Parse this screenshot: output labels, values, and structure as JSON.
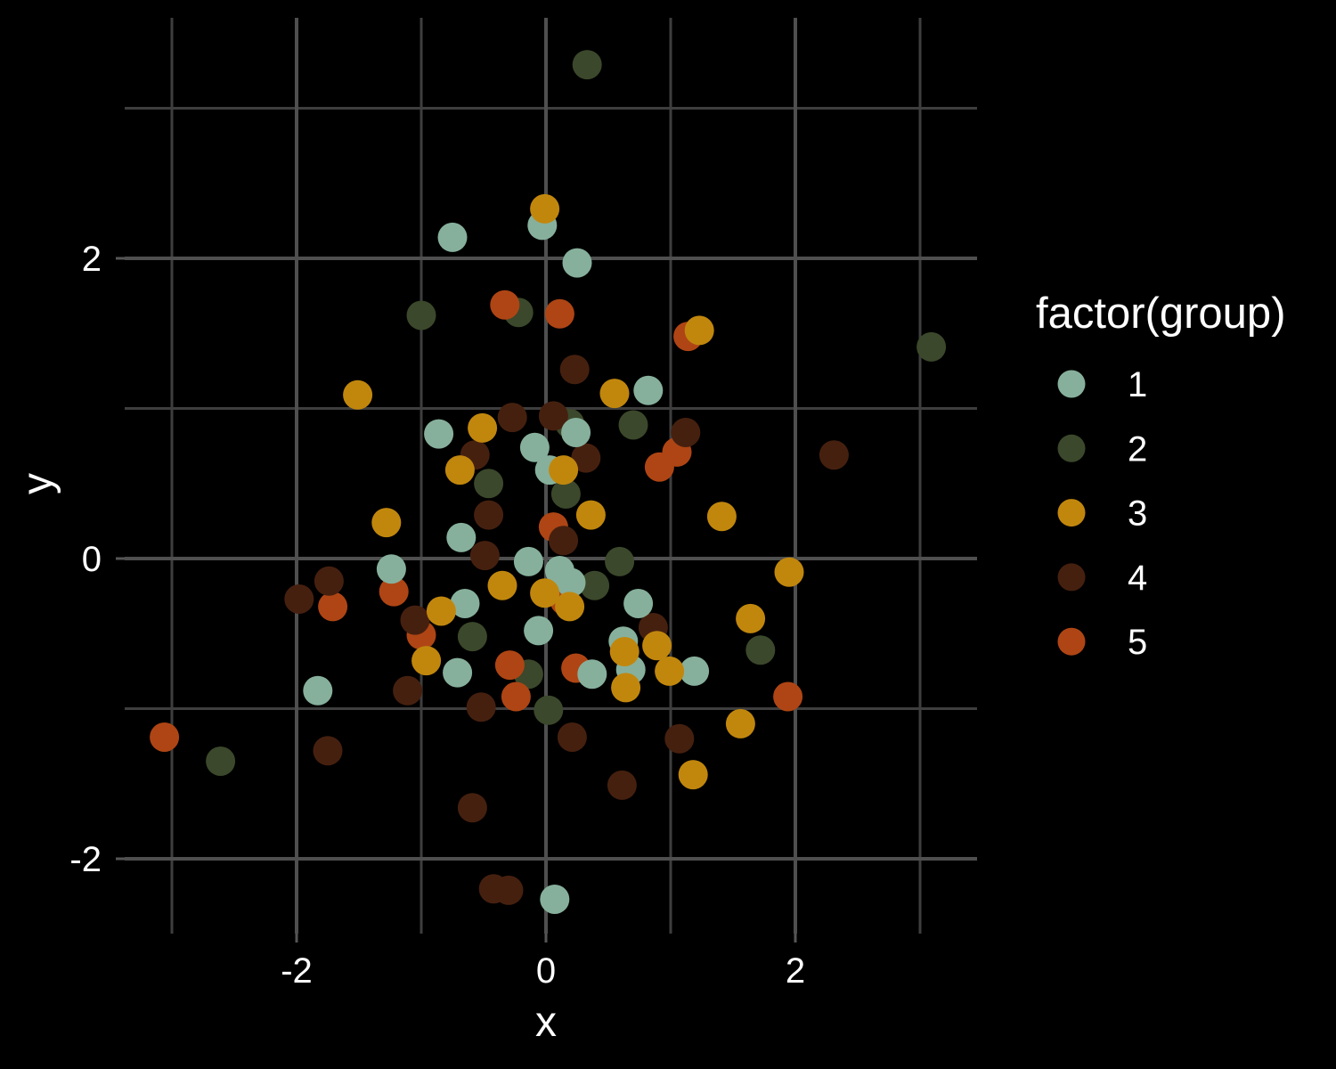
{
  "chart_data": {
    "type": "scatter",
    "title": "",
    "xlabel": "x",
    "ylabel": "y",
    "background_color": "#000000",
    "grid": true,
    "x_range": [
      -3.38,
      3.46
    ],
    "y_range": [
      -2.5,
      3.6
    ],
    "x_major_ticks": [
      {
        "value": -2,
        "label": "-2"
      },
      {
        "value": 0,
        "label": "0"
      },
      {
        "value": 2,
        "label": "2"
      }
    ],
    "y_major_ticks": [
      {
        "value": -2,
        "label": "-2"
      },
      {
        "value": 0,
        "label": "0"
      },
      {
        "value": 2,
        "label": "2"
      }
    ],
    "x_minor_gridlines": [
      -3,
      -1,
      1,
      3
    ],
    "y_minor_gridlines": [
      -1,
      1,
      3
    ],
    "legend_title": "factor(group)",
    "legend_position": "right",
    "point_draw_order": [
      "2",
      "5",
      "4",
      "1",
      "3"
    ],
    "series": [
      {
        "name": "1",
        "color": "#86B09C",
        "points": [
          [
            -0.03,
            2.22
          ],
          [
            -0.75,
            2.14
          ],
          [
            0.25,
            1.97
          ],
          [
            0.82,
            1.12
          ],
          [
            -0.86,
            0.83
          ],
          [
            0.24,
            0.84
          ],
          [
            -0.09,
            0.74
          ],
          [
            0.03,
            0.59
          ],
          [
            -0.68,
            0.14
          ],
          [
            -0.14,
            -0.02
          ],
          [
            0.11,
            -0.08
          ],
          [
            0.2,
            -0.16
          ],
          [
            -1.24,
            -0.07
          ],
          [
            -0.65,
            -0.3
          ],
          [
            0.74,
            -0.3
          ],
          [
            -0.06,
            -0.48
          ],
          [
            0.62,
            -0.55
          ],
          [
            -0.71,
            -0.76
          ],
          [
            0.37,
            -0.77
          ],
          [
            0.68,
            -0.74
          ],
          [
            1.19,
            -0.75
          ],
          [
            -1.83,
            -0.88
          ],
          [
            0.07,
            -2.27
          ]
        ]
      },
      {
        "name": "2",
        "color": "#3B482B",
        "points": [
          [
            0.33,
            3.29
          ],
          [
            -1.0,
            1.62
          ],
          [
            -0.22,
            1.64
          ],
          [
            3.09,
            1.41
          ],
          [
            0.7,
            0.89
          ],
          [
            0.19,
            0.9
          ],
          [
            -0.46,
            0.5
          ],
          [
            0.16,
            0.43
          ],
          [
            0.59,
            -0.02
          ],
          [
            0.39,
            -0.18
          ],
          [
            -0.59,
            -0.52
          ],
          [
            -0.14,
            -0.77
          ],
          [
            0.02,
            -1.01
          ],
          [
            1.72,
            -0.61
          ],
          [
            -2.61,
            -1.35
          ]
        ]
      },
      {
        "name": "3",
        "color": "#C1870D",
        "points": [
          [
            -0.01,
            2.33
          ],
          [
            1.23,
            1.52
          ],
          [
            -1.51,
            1.09
          ],
          [
            0.55,
            1.1
          ],
          [
            -0.51,
            0.87
          ],
          [
            -0.69,
            0.59
          ],
          [
            0.14,
            0.59
          ],
          [
            -1.28,
            0.24
          ],
          [
            0.36,
            0.29
          ],
          [
            1.41,
            0.28
          ],
          [
            -0.35,
            -0.18
          ],
          [
            -0.01,
            -0.23
          ],
          [
            0.19,
            -0.32
          ],
          [
            1.95,
            -0.09
          ],
          [
            -0.84,
            -0.35
          ],
          [
            -0.96,
            -0.68
          ],
          [
            0.63,
            -0.62
          ],
          [
            0.89,
            -0.58
          ],
          [
            0.64,
            -0.86
          ],
          [
            0.99,
            -0.75
          ],
          [
            1.56,
            -1.1
          ],
          [
            1.64,
            -0.4
          ],
          [
            1.18,
            -1.44
          ]
        ]
      },
      {
        "name": "4",
        "color": "#46200F",
        "points": [
          [
            0.23,
            1.26
          ],
          [
            -0.27,
            0.94
          ],
          [
            0.06,
            0.95
          ],
          [
            -0.57,
            0.69
          ],
          [
            0.32,
            0.67
          ],
          [
            1.12,
            0.84
          ],
          [
            2.31,
            0.69
          ],
          [
            -0.46,
            0.29
          ],
          [
            0.14,
            0.12
          ],
          [
            -0.49,
            0.02
          ],
          [
            -1.74,
            -0.15
          ],
          [
            -1.98,
            -0.27
          ],
          [
            -1.05,
            -0.41
          ],
          [
            -0.52,
            -0.99
          ],
          [
            0.86,
            -0.46
          ],
          [
            1.07,
            -1.2
          ],
          [
            0.21,
            -1.19
          ],
          [
            0.61,
            -1.51
          ],
          [
            -0.59,
            -1.66
          ],
          [
            -1.11,
            -0.88
          ],
          [
            -0.42,
            -2.2
          ],
          [
            -0.3,
            -2.21
          ],
          [
            -1.75,
            -1.28
          ]
        ]
      },
      {
        "name": "5",
        "color": "#AF4514",
        "points": [
          [
            -0.33,
            1.69
          ],
          [
            0.11,
            1.63
          ],
          [
            1.14,
            1.48
          ],
          [
            0.06,
            0.21
          ],
          [
            0.15,
            -0.28
          ],
          [
            -1.22,
            -0.22
          ],
          [
            -1.71,
            -0.32
          ],
          [
            1.05,
            0.71
          ],
          [
            0.91,
            0.61
          ],
          [
            -0.29,
            -0.71
          ],
          [
            -0.24,
            -0.92
          ],
          [
            0.24,
            -0.73
          ],
          [
            -1.0,
            -0.51
          ],
          [
            1.94,
            -0.92
          ],
          [
            -3.06,
            -1.19
          ]
        ]
      }
    ]
  }
}
